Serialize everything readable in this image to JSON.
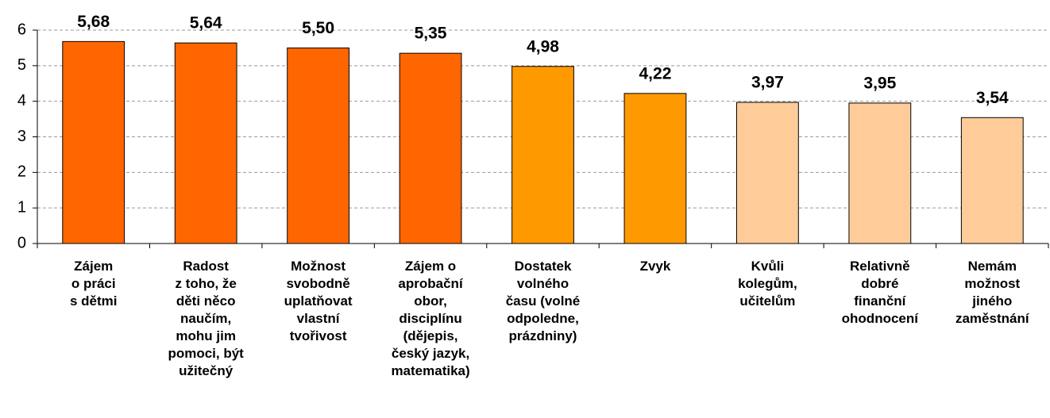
{
  "chart_data": {
    "type": "bar",
    "categories": [
      [
        "Zájem",
        "o práci",
        "s dětmi"
      ],
      [
        "Radost",
        "z toho, že",
        "děti něco",
        "naučím,",
        "mohu jim",
        "pomoci, být",
        "užitečný"
      ],
      [
        "Možnost",
        "svobodně",
        "uplatňovat",
        "vlastní",
        "tvořivost"
      ],
      [
        "Zájem o",
        "aprobační",
        "obor,",
        "disciplínu",
        "(dějepis,",
        "český jazyk,",
        "matematika)"
      ],
      [
        "Dostatek",
        "volného",
        "času (volné",
        "odpoledne,",
        "prázdniny)"
      ],
      [
        "Zvyk"
      ],
      [
        "Kvůli",
        "kolegům,",
        "učitelům"
      ],
      [
        "Relativně",
        "dobré",
        "finanční",
        "ohodnocení"
      ],
      [
        "Nemám",
        "možnost",
        "jiného",
        "zaměstnání"
      ]
    ],
    "values": [
      5.68,
      5.64,
      5.5,
      5.35,
      4.98,
      4.22,
      3.97,
      3.95,
      3.54
    ],
    "value_labels": [
      "5,68",
      "5,64",
      "5,50",
      "5,35",
      "4,98",
      "4,22",
      "3,97",
      "3,95",
      "3,54"
    ],
    "colors": [
      "#ff6600",
      "#ff6600",
      "#ff6600",
      "#ff6600",
      "#ff9900",
      "#ff9900",
      "#ffcc99",
      "#ffcc99",
      "#ffcc99"
    ],
    "ylim": [
      0,
      6
    ],
    "yticks": [
      0,
      1,
      2,
      3,
      4,
      5,
      6
    ],
    "grid": true
  }
}
